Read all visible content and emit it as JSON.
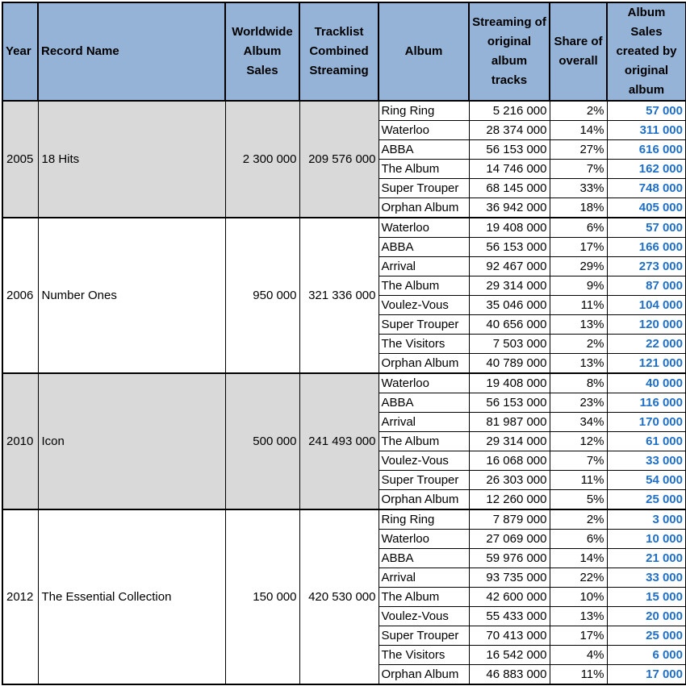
{
  "headers": {
    "year": "Year",
    "record_name": "Record Name",
    "worldwide_sales": "Worldwide Album Sales",
    "tracklist_streaming": "Tracklist Combined Streaming",
    "album": "Album",
    "streaming_original": "Streaming of original album tracks",
    "share": "Share of overall",
    "album_sales_created": "Album Sales created by original album"
  },
  "groups": [
    {
      "year": "2005",
      "record_name": "18 Hits",
      "worldwide_sales": "2 300 000",
      "tracklist_streaming": "209 576 000",
      "shade": "gray",
      "rows": [
        {
          "album": "Ring Ring",
          "streaming": "5 216 000",
          "share": "2%",
          "sales": "57 000"
        },
        {
          "album": "Waterloo",
          "streaming": "28 374 000",
          "share": "14%",
          "sales": "311 000"
        },
        {
          "album": "ABBA",
          "streaming": "56 153 000",
          "share": "27%",
          "sales": "616 000"
        },
        {
          "album": "The Album",
          "streaming": "14 746 000",
          "share": "7%",
          "sales": "162 000"
        },
        {
          "album": "Super Trouper",
          "streaming": "68 145 000",
          "share": "33%",
          "sales": "748 000"
        },
        {
          "album": "Orphan Album",
          "streaming": "36 942 000",
          "share": "18%",
          "sales": "405 000"
        }
      ]
    },
    {
      "year": "2006",
      "record_name": "Number Ones",
      "worldwide_sales": "950 000",
      "tracklist_streaming": "321 336 000",
      "shade": "white",
      "rows": [
        {
          "album": "Waterloo",
          "streaming": "19 408 000",
          "share": "6%",
          "sales": "57 000"
        },
        {
          "album": "ABBA",
          "streaming": "56 153 000",
          "share": "17%",
          "sales": "166 000"
        },
        {
          "album": "Arrival",
          "streaming": "92 467 000",
          "share": "29%",
          "sales": "273 000"
        },
        {
          "album": "The Album",
          "streaming": "29 314 000",
          "share": "9%",
          "sales": "87 000"
        },
        {
          "album": "Voulez-Vous",
          "streaming": "35 046 000",
          "share": "11%",
          "sales": "104 000"
        },
        {
          "album": "Super Trouper",
          "streaming": "40 656 000",
          "share": "13%",
          "sales": "120 000"
        },
        {
          "album": "The Visitors",
          "streaming": "7 503 000",
          "share": "2%",
          "sales": "22 000"
        },
        {
          "album": "Orphan Album",
          "streaming": "40 789 000",
          "share": "13%",
          "sales": "121 000"
        }
      ]
    },
    {
      "year": "2010",
      "record_name": "Icon",
      "worldwide_sales": "500 000",
      "tracklist_streaming": "241 493 000",
      "shade": "gray",
      "rows": [
        {
          "album": "Waterloo",
          "streaming": "19 408 000",
          "share": "8%",
          "sales": "40 000"
        },
        {
          "album": "ABBA",
          "streaming": "56 153 000",
          "share": "23%",
          "sales": "116 000"
        },
        {
          "album": "Arrival",
          "streaming": "81 987 000",
          "share": "34%",
          "sales": "170 000"
        },
        {
          "album": "The Album",
          "streaming": "29 314 000",
          "share": "12%",
          "sales": "61 000"
        },
        {
          "album": "Voulez-Vous",
          "streaming": "16 068 000",
          "share": "7%",
          "sales": "33 000"
        },
        {
          "album": "Super Trouper",
          "streaming": "26 303 000",
          "share": "11%",
          "sales": "54 000"
        },
        {
          "album": "Orphan Album",
          "streaming": "12 260 000",
          "share": "5%",
          "sales": "25 000"
        }
      ]
    },
    {
      "year": "2012",
      "record_name": "The Essential Collection",
      "worldwide_sales": "150 000",
      "tracklist_streaming": "420 530 000",
      "shade": "white",
      "rows": [
        {
          "album": "Ring Ring",
          "streaming": "7 879 000",
          "share": "2%",
          "sales": "3 000"
        },
        {
          "album": "Waterloo",
          "streaming": "27 069 000",
          "share": "6%",
          "sales": "10 000"
        },
        {
          "album": "ABBA",
          "streaming": "59 976 000",
          "share": "14%",
          "sales": "21 000"
        },
        {
          "album": "Arrival",
          "streaming": "93 735 000",
          "share": "22%",
          "sales": "33 000"
        },
        {
          "album": "The Album",
          "streaming": "42 600 000",
          "share": "10%",
          "sales": "15 000"
        },
        {
          "album": "Voulez-Vous",
          "streaming": "55 433 000",
          "share": "13%",
          "sales": "20 000"
        },
        {
          "album": "Super Trouper",
          "streaming": "70 413 000",
          "share": "17%",
          "sales": "25 000"
        },
        {
          "album": "The Visitors",
          "streaming": "16 542 000",
          "share": "4%",
          "sales": "6 000"
        },
        {
          "album": "Orphan Album",
          "streaming": "46 883 000",
          "share": "11%",
          "sales": "17 000"
        }
      ]
    }
  ],
  "colors": {
    "header_bg": "#95b3d7",
    "gray_group_bg": "#d9d9d9",
    "sales_text": "#1f6fc6"
  }
}
